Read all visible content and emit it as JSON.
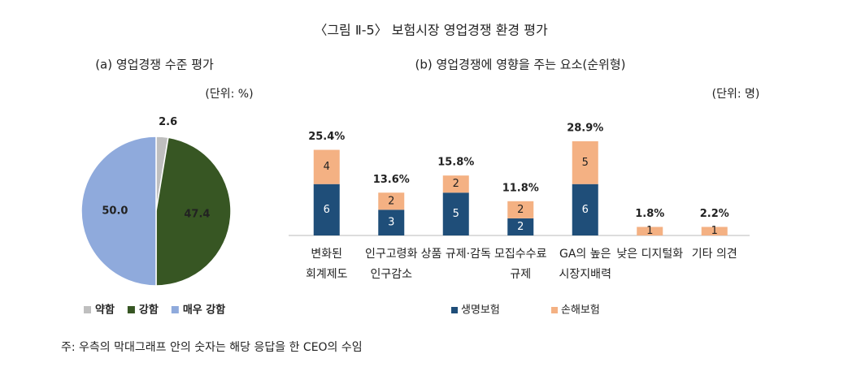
{
  "title": "〈그림 Ⅱ-5〉 보험시장 영업경쟁 환경 평가",
  "note": "주: 우측의 막대그래프 안의 숫자는 해당 응답을 한 CEO의 수임",
  "chart_data": [
    {
      "type": "pie",
      "title": "(a) 영업경쟁 수준 평가",
      "unit": "(단위: %)",
      "categories": [
        "약함",
        "강함",
        "매우 강함"
      ],
      "values": [
        2.6,
        47.4,
        50.0
      ],
      "value_labels": [
        "2.6",
        "47.4",
        "50.0"
      ],
      "colors": [
        "#bfbfbf",
        "#375623",
        "#8faadc"
      ]
    },
    {
      "type": "stacked-bar",
      "title": "(b) 영업경쟁에 영향을 주는 요소(순위형)",
      "unit": "(단위: 명)",
      "categories": [
        [
          "변화된",
          "회계제도"
        ],
        [
          "인구고령화",
          "인구감소"
        ],
        [
          "상품 규제·감독"
        ],
        [
          "모집수수료",
          "규제"
        ],
        [
          "GA의 높은",
          "시장지배력"
        ],
        [
          "낮은 디지털화"
        ],
        [
          "기타 의견"
        ]
      ],
      "series": [
        {
          "name": "생명보험",
          "color": "#1f4e79",
          "values": [
            6,
            3,
            5,
            2,
            6,
            null,
            null
          ]
        },
        {
          "name": "손해보험",
          "color": "#f4b183",
          "values": [
            4,
            2,
            2,
            2,
            5,
            1,
            1
          ]
        }
      ],
      "totals": {
        "values": [
          25.4,
          13.6,
          15.8,
          11.8,
          28.9,
          1.8,
          2.2
        ],
        "value_labels": [
          "25.4%",
          "13.6%",
          "15.8%",
          "11.8%",
          "28.9%",
          "1.8%",
          "2.2%"
        ]
      }
    }
  ]
}
